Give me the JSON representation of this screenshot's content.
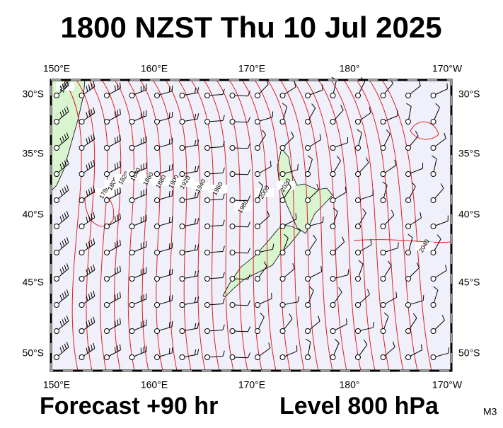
{
  "header": {
    "title": "1800 NZST Thu 10 Jul 2025"
  },
  "map": {
    "lon_labels": [
      "150°E",
      "160°E",
      "170°E",
      "180°",
      "170°W"
    ],
    "lat_labels": [
      "30°S",
      "35°S",
      "40°S",
      "45°S",
      "50°S"
    ],
    "contour_labels": [
      "1960",
      "1780",
      "1800",
      "1820",
      "1840",
      "1860",
      "1880",
      "1900",
      "1920",
      "1940",
      "1960",
      "1980",
      "2000",
      "2020",
      "2040"
    ]
  },
  "footer": {
    "forecast": "Forecast +90 hr",
    "level": "Level 800 hPa",
    "code": "M3"
  }
}
